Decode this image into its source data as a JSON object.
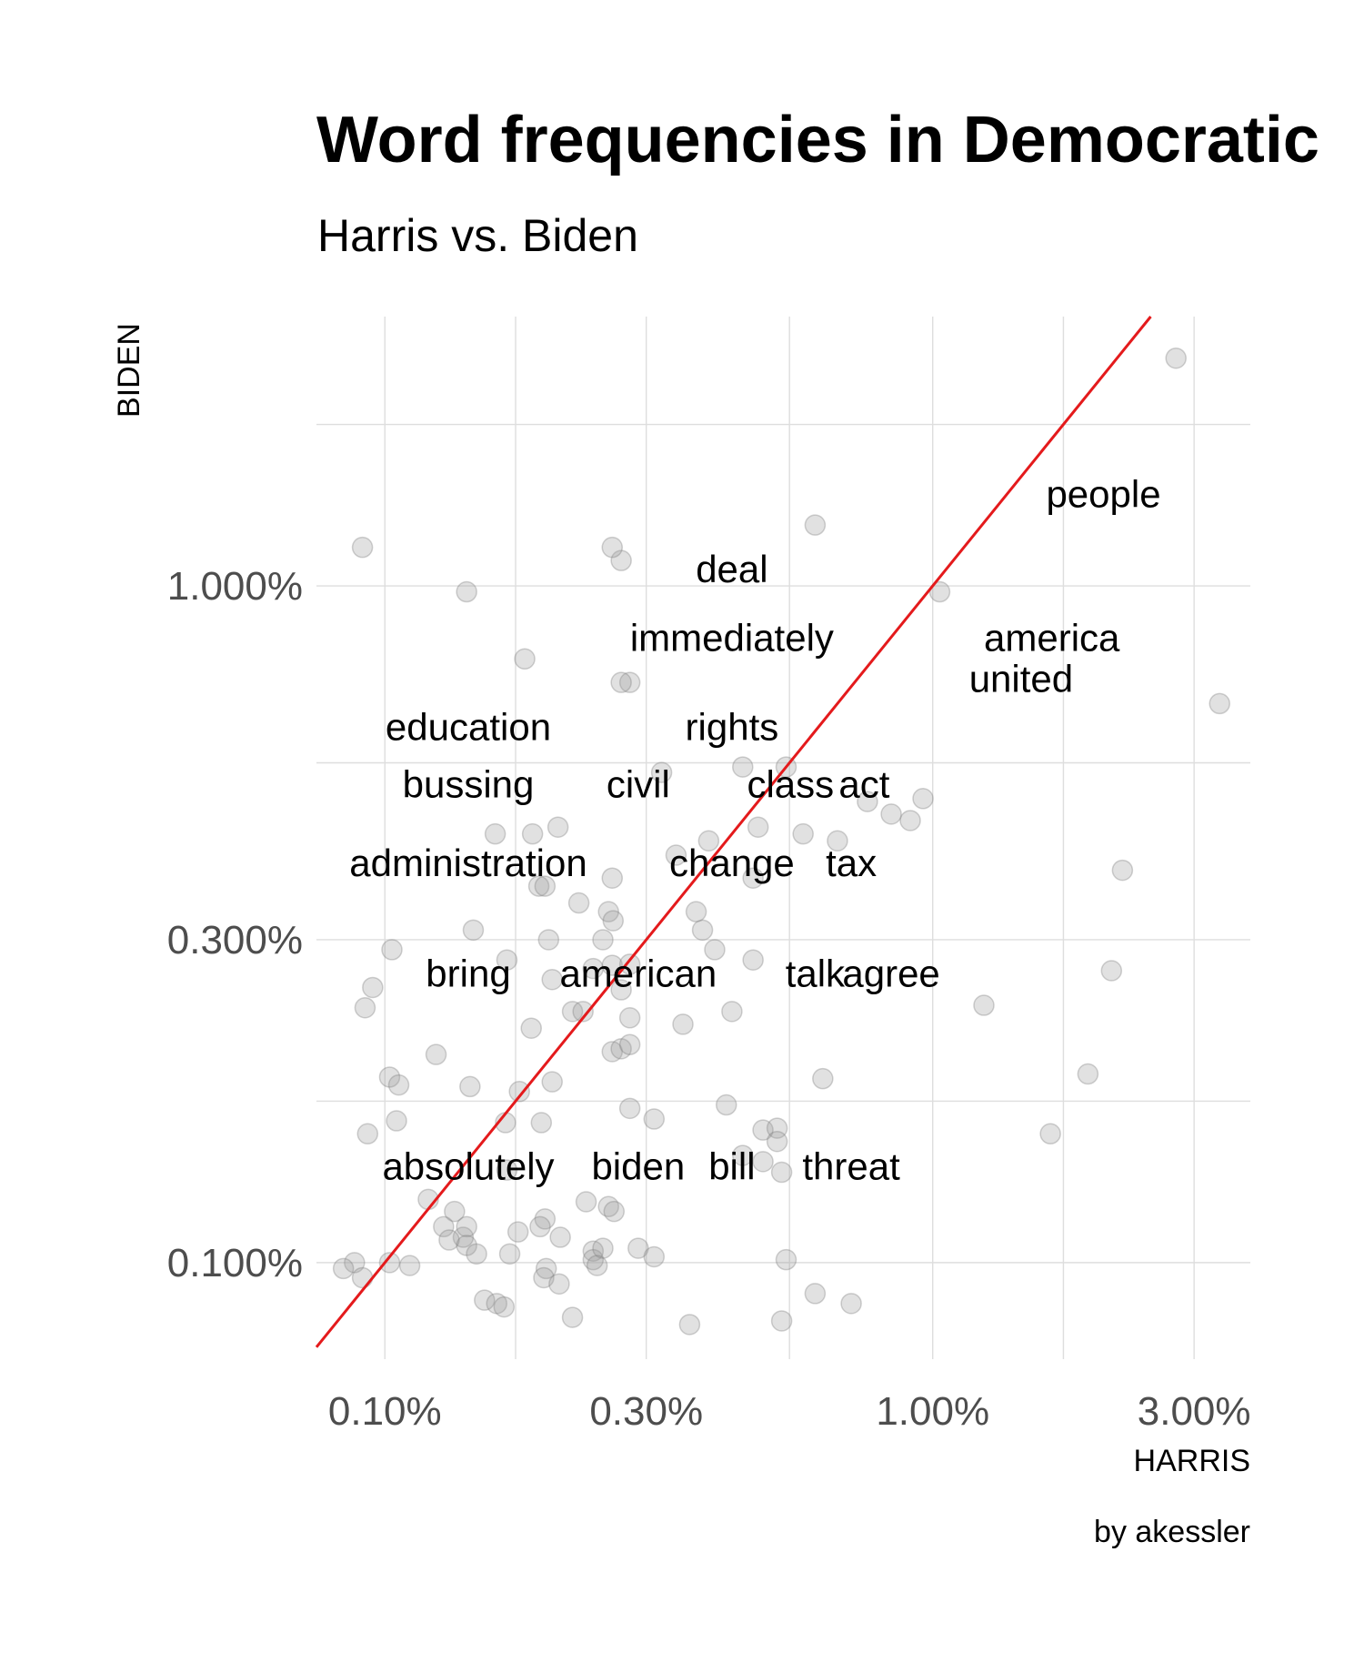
{
  "chart_data": {
    "type": "scatter",
    "title": "Word frequencies in Democratic",
    "subtitle": "Harris vs. Biden",
    "xlabel": "HARRIS",
    "ylabel": "BIDEN",
    "caption": "by akessler",
    "x_scale": "log10",
    "y_scale": "log10",
    "xlim": [
      0.00075,
      0.038
    ],
    "ylim": [
      0.00072,
      0.025
    ],
    "x_ticks": [
      0.001,
      0.003,
      0.01,
      0.03
    ],
    "x_tick_labels": [
      "0.10%",
      "0.30%",
      "1.00%",
      "3.00%"
    ],
    "y_ticks": [
      0.001,
      0.003,
      0.01
    ],
    "y_tick_labels": [
      "0.100%",
      "0.300%",
      "1.000%"
    ],
    "reference_line": {
      "slope": 1,
      "intercept": 0,
      "color": "#e41a1c"
    },
    "labels": [
      {
        "word": "people",
        "x": 0.0205,
        "y": 0.0137
      },
      {
        "word": "deal",
        "x": 0.0043,
        "y": 0.0106
      },
      {
        "word": "immediately",
        "x": 0.0043,
        "y": 0.0084
      },
      {
        "word": "america",
        "x": 0.0165,
        "y": 0.0084
      },
      {
        "word": "united",
        "x": 0.0145,
        "y": 0.0073
      },
      {
        "word": "education",
        "x": 0.00142,
        "y": 0.0062
      },
      {
        "word": "rights",
        "x": 0.0043,
        "y": 0.0062
      },
      {
        "word": "bussing",
        "x": 0.00142,
        "y": 0.0051
      },
      {
        "word": "civil",
        "x": 0.0029,
        "y": 0.0051
      },
      {
        "word": "class",
        "x": 0.0055,
        "y": 0.0051
      },
      {
        "word": "act",
        "x": 0.0075,
        "y": 0.0051
      },
      {
        "word": "administration",
        "x": 0.00142,
        "y": 0.0039
      },
      {
        "word": "change",
        "x": 0.0043,
        "y": 0.0039
      },
      {
        "word": "tax",
        "x": 0.0071,
        "y": 0.0039
      },
      {
        "word": "bring",
        "x": 0.00142,
        "y": 0.00268
      },
      {
        "word": "american",
        "x": 0.0029,
        "y": 0.00268
      },
      {
        "word": "talk",
        "x": 0.0061,
        "y": 0.00268
      },
      {
        "word": "agree",
        "x": 0.0084,
        "y": 0.00268
      },
      {
        "word": "absolutely",
        "x": 0.00142,
        "y": 0.00139
      },
      {
        "word": "biden",
        "x": 0.0029,
        "y": 0.00139
      },
      {
        "word": "bill",
        "x": 0.0043,
        "y": 0.00139
      },
      {
        "word": "threat",
        "x": 0.0071,
        "y": 0.00139
      }
    ],
    "points": [
      [
        0.0278,
        0.0217
      ],
      [
        0.00091,
        0.0114
      ],
      [
        0.0061,
        0.0123
      ],
      [
        0.0027,
        0.0109
      ],
      [
        0.0026,
        0.0114
      ],
      [
        0.0334,
        0.0067
      ],
      [
        0.0103,
        0.0098
      ],
      [
        0.00141,
        0.0098
      ],
      [
        0.0028,
        0.0072
      ],
      [
        0.0222,
        0.0038
      ],
      [
        0.0096,
        0.00485
      ],
      [
        0.0091,
        0.0045
      ],
      [
        0.0212,
        0.0027
      ],
      [
        0.0124,
        0.0024
      ],
      [
        0.0192,
        0.0019
      ],
      [
        0.0018,
        0.0078
      ],
      [
        0.0027,
        0.0072
      ],
      [
        0.00186,
        0.0043
      ],
      [
        0.00207,
        0.0044
      ],
      [
        0.00159,
        0.0043
      ],
      [
        0.0045,
        0.0054
      ],
      [
        0.0032,
        0.0053
      ],
      [
        0.0039,
        0.0042
      ],
      [
        0.0048,
        0.0044
      ],
      [
        0.0054,
        0.0054
      ],
      [
        0.0058,
        0.0043
      ],
      [
        0.0067,
        0.0042
      ],
      [
        0.0076,
        0.0048
      ],
      [
        0.0084,
        0.0046
      ],
      [
        0.0034,
        0.004
      ],
      [
        0.0026,
        0.0037
      ],
      [
        0.0047,
        0.0037
      ],
      [
        0.00191,
        0.0036
      ],
      [
        0.00196,
        0.0036
      ],
      [
        0.00226,
        0.0034
      ],
      [
        0.00256,
        0.0033
      ],
      [
        0.00261,
        0.0032
      ],
      [
        0.0025,
        0.003
      ],
      [
        0.00145,
        0.0031
      ],
      [
        0.00199,
        0.003
      ],
      [
        0.0037,
        0.0033
      ],
      [
        0.0038,
        0.0031
      ],
      [
        0.004,
        0.0029
      ],
      [
        0.0047,
        0.0028
      ],
      [
        0.00103,
        0.0029
      ],
      [
        0.00167,
        0.0028
      ],
      [
        0.00095,
        0.00255
      ],
      [
        0.00092,
        0.00238
      ],
      [
        0.00202,
        0.00262
      ],
      [
        0.0024,
        0.00272
      ],
      [
        0.0026,
        0.00275
      ],
      [
        0.0028,
        0.00276
      ],
      [
        0.0027,
        0.00253
      ],
      [
        0.0022,
        0.00235
      ],
      [
        0.0023,
        0.00235
      ],
      [
        0.0028,
        0.0023
      ],
      [
        0.0035,
        0.00225
      ],
      [
        0.0043,
        0.00235
      ],
      [
        0.00185,
        0.00222
      ],
      [
        0.0026,
        0.00205
      ],
      [
        0.0027,
        0.00207
      ],
      [
        0.0028,
        0.0021
      ],
      [
        0.00124,
        0.00203
      ],
      [
        0.00102,
        0.00188
      ],
      [
        0.00106,
        0.00183
      ],
      [
        0.00143,
        0.00182
      ],
      [
        0.00176,
        0.00179
      ],
      [
        0.00202,
        0.00185
      ],
      [
        0.0028,
        0.00169
      ],
      [
        0.0031,
        0.00163
      ],
      [
        0.0042,
        0.00171
      ],
      [
        0.0063,
        0.00187
      ],
      [
        0.00166,
        0.00161
      ],
      [
        0.00193,
        0.00161
      ],
      [
        0.00093,
        0.00155
      ],
      [
        0.00105,
        0.00162
      ],
      [
        0.0049,
        0.00157
      ],
      [
        0.0052,
        0.00158
      ],
      [
        0.0052,
        0.00151
      ],
      [
        0.0164,
        0.00155
      ],
      [
        0.0045,
        0.00144
      ],
      [
        0.0049,
        0.00141
      ],
      [
        0.0053,
        0.00136
      ],
      [
        0.00167,
        0.00137
      ],
      [
        0.00256,
        0.00121
      ],
      [
        0.00262,
        0.00119
      ],
      [
        0.00196,
        0.00116
      ],
      [
        0.00233,
        0.00123
      ],
      [
        0.00192,
        0.00113
      ],
      [
        0.0012,
        0.00124
      ],
      [
        0.00134,
        0.00119
      ],
      [
        0.00128,
        0.00113
      ],
      [
        0.00139,
        0.00109
      ],
      [
        0.00141,
        0.00113
      ],
      [
        0.00175,
        0.00111
      ],
      [
        0.00209,
        0.00109
      ],
      [
        0.00131,
        0.00108
      ],
      [
        0.0024,
        0.00104
      ],
      [
        0.0024,
        0.00101
      ],
      [
        0.0025,
        0.00105
      ],
      [
        0.0029,
        0.00105
      ],
      [
        0.00141,
        0.00106
      ],
      [
        0.00147,
        0.00103
      ],
      [
        0.00169,
        0.00103
      ],
      [
        0.0031,
        0.00102
      ],
      [
        0.00088,
        0.001
      ],
      [
        0.00084,
        0.00098
      ],
      [
        0.00091,
        0.00095
      ],
      [
        0.00102,
        0.001
      ],
      [
        0.00111,
        0.00099
      ],
      [
        0.00197,
        0.00098
      ],
      [
        0.00195,
        0.00095
      ],
      [
        0.00208,
        0.00093
      ],
      [
        0.00244,
        0.00099
      ],
      [
        0.0054,
        0.00101
      ],
      [
        0.0061,
        0.0009
      ],
      [
        0.00152,
        0.00088
      ],
      [
        0.0016,
        0.00087
      ],
      [
        0.00165,
        0.00086
      ],
      [
        0.0022,
        0.00083
      ],
      [
        0.0036,
        0.00081
      ],
      [
        0.0053,
        0.00082
      ],
      [
        0.0071,
        0.00087
      ]
    ]
  }
}
